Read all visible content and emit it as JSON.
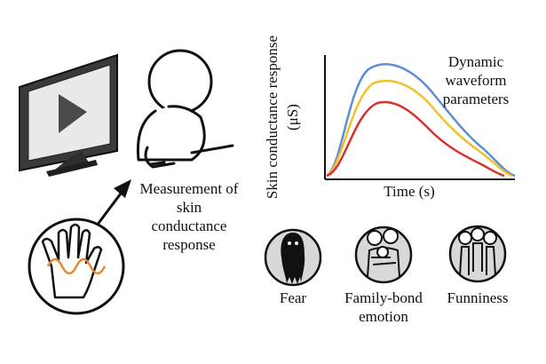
{
  "measurement_label": [
    "Measurement of",
    "skin",
    "conductance",
    "response"
  ],
  "chart": {
    "ylabel_line1": "Skin conductance response",
    "ylabel_line2": "(μS)",
    "xlabel": "Time (s)",
    "annotation": [
      "Dynamic",
      "waveform",
      "parameters"
    ]
  },
  "chart_data": {
    "type": "line",
    "xlabel": "Time (s)",
    "ylabel": "Skin conductance response (μS)",
    "series": [
      {
        "color": "#5b8fd0"
      },
      {
        "color": "#f2c12e"
      },
      {
        "color": "#d9312b"
      }
    ]
  },
  "emotions": [
    {
      "label": [
        "Fear"
      ],
      "icon": "ghost-figure-icon"
    },
    {
      "label": [
        "Family-bond",
        "emotion"
      ],
      "icon": "hugging-family-icon"
    },
    {
      "label": [
        "Funniness"
      ],
      "icon": "laughing-people-icon"
    }
  ],
  "icons": {
    "monitor": "video-monitor-icon",
    "viewer": "seated-person-icon",
    "hand": "hand-sensor-icon",
    "arrow": "arrow-icon"
  }
}
